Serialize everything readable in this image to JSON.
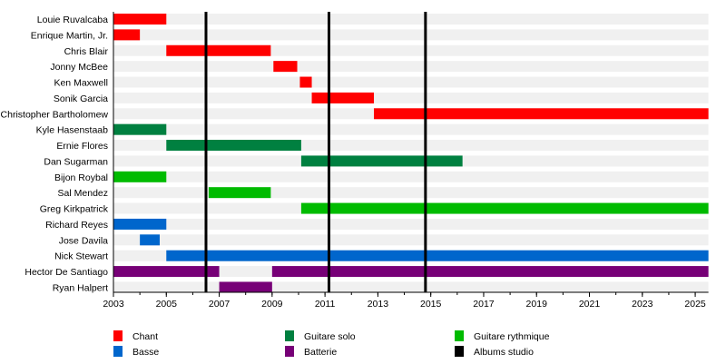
{
  "chart_data": {
    "type": "timeline",
    "xlim": [
      2003,
      2025.5
    ],
    "x_ticks": [
      2003,
      2005,
      2007,
      2009,
      2011,
      2013,
      2015,
      2017,
      2019,
      2021,
      2023,
      2025
    ],
    "roles": [
      {
        "id": "chant",
        "name": "Chant",
        "color": "#ff0000"
      },
      {
        "id": "guitare_solo",
        "name": "Guitare solo",
        "color": "#008040"
      },
      {
        "id": "guitare_rythmique",
        "name": "Guitare rythmique",
        "color": "#00bb00"
      },
      {
        "id": "basse",
        "name": "Basse",
        "color": "#0066cc"
      },
      {
        "id": "batterie",
        "name": "Batterie",
        "color": "#770077"
      },
      {
        "id": "albums",
        "name": "Albums studio",
        "color": "#000000"
      }
    ],
    "members": [
      {
        "name": "Louie Ruvalcaba",
        "periods": [
          {
            "role": "chant",
            "start": 2003,
            "end": 2005
          }
        ]
      },
      {
        "name": "Enrique Martin, Jr.",
        "periods": [
          {
            "role": "chant",
            "start": 2003,
            "end": 2004
          }
        ]
      },
      {
        "name": "Chris Blair",
        "periods": [
          {
            "role": "chant",
            "start": 2005,
            "end": 2008.95
          }
        ]
      },
      {
        "name": "Jonny McBee",
        "periods": [
          {
            "role": "chant",
            "start": 2009.05,
            "end": 2009.95
          }
        ]
      },
      {
        "name": "Ken Maxwell",
        "periods": [
          {
            "role": "chant",
            "start": 2010.05,
            "end": 2010.5
          }
        ]
      },
      {
        "name": "Sonik Garcia",
        "periods": [
          {
            "role": "chant",
            "start": 2010.5,
            "end": 2012.85
          }
        ]
      },
      {
        "name": "Christopher Bartholomew",
        "periods": [
          {
            "role": "chant",
            "start": 2012.85,
            "end": 2025.5
          }
        ]
      },
      {
        "name": "Kyle Hasenstaab",
        "periods": [
          {
            "role": "guitare_solo",
            "start": 2003,
            "end": 2005
          }
        ]
      },
      {
        "name": "Ernie Flores",
        "periods": [
          {
            "role": "guitare_solo",
            "start": 2005,
            "end": 2010.1
          }
        ]
      },
      {
        "name": "Dan Sugarman",
        "periods": [
          {
            "role": "guitare_solo",
            "start": 2010.1,
            "end": 2016.2
          }
        ]
      },
      {
        "name": "Bijon Roybal",
        "periods": [
          {
            "role": "guitare_rythmique",
            "start": 2003,
            "end": 2005
          }
        ]
      },
      {
        "name": "Sal Mendez",
        "periods": [
          {
            "role": "guitare_rythmique",
            "start": 2006.6,
            "end": 2008.95
          }
        ]
      },
      {
        "name": "Greg Kirkpatrick",
        "periods": [
          {
            "role": "guitare_rythmique",
            "start": 2010.1,
            "end": 2025.5
          }
        ]
      },
      {
        "name": "Richard Reyes",
        "periods": [
          {
            "role": "basse",
            "start": 2003,
            "end": 2005
          }
        ]
      },
      {
        "name": "Jose Davila",
        "periods": [
          {
            "role": "basse",
            "start": 2004,
            "end": 2004.75
          }
        ]
      },
      {
        "name": "Nick Stewart",
        "periods": [
          {
            "role": "basse",
            "start": 2005,
            "end": 2025.5
          }
        ]
      },
      {
        "name": "Hector De Santiago",
        "periods": [
          {
            "role": "batterie",
            "start": 2003,
            "end": 2007
          },
          {
            "role": "batterie",
            "start": 2009,
            "end": 2025.5
          }
        ]
      },
      {
        "name": "Ryan Halpert",
        "periods": [
          {
            "role": "batterie",
            "start": 2007,
            "end": 2009
          }
        ]
      }
    ],
    "albums": [
      2006.5,
      2011.15,
      2014.8
    ],
    "legend_position": "bottom"
  }
}
